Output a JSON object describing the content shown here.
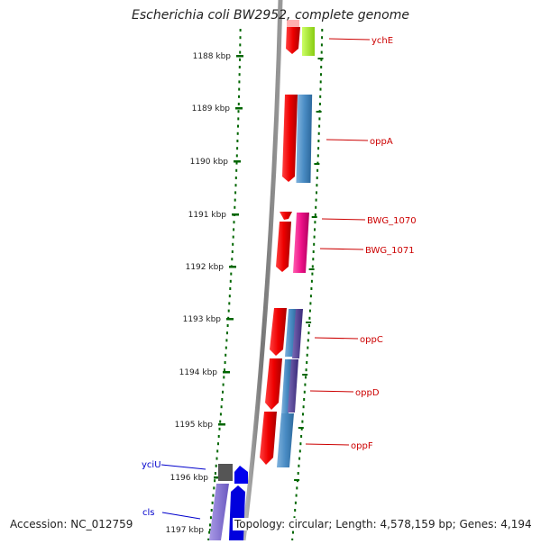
{
  "title": "Escherichia coli BW2952, complete genome",
  "footer": {
    "accession": "Accession: NC_012759",
    "topology": "Topology: circular; Length: 4,578,159 bp; Genes: 4,194"
  },
  "ticks": [
    "1188 kbp",
    "1189 kbp",
    "1190 kbp",
    "1191 kbp",
    "1192 kbp",
    "1193 kbp",
    "1194 kbp",
    "1195 kbp",
    "1196 kbp",
    "1197 kbp"
  ],
  "genes_right": [
    "ychE",
    "oppA",
    "BWG_1070",
    "BWG_1071",
    "oppC",
    "oppD",
    "oppF"
  ],
  "genes_left": [
    "yciU",
    "cls"
  ],
  "colors": {
    "label_right": "#cc0000",
    "label_left": "#0000cc",
    "tick": "#006600",
    "backbone": "#888888"
  }
}
